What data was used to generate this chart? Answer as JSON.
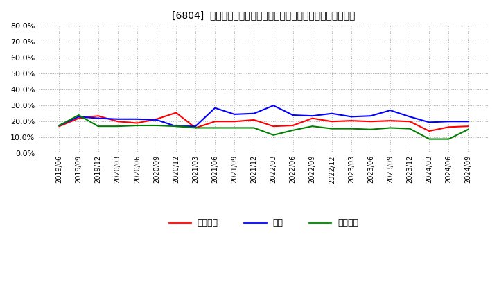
{
  "title": "[6804]  売上債権、在庫、買入債務の総資産に対する比率の推移",
  "x_labels": [
    "2019/06",
    "2019/09",
    "2019/12",
    "2020/03",
    "2020/06",
    "2020/09",
    "2020/12",
    "2021/03",
    "2021/06",
    "2021/09",
    "2021/12",
    "2022/03",
    "2022/06",
    "2022/09",
    "2022/12",
    "2023/03",
    "2023/06",
    "2023/09",
    "2023/12",
    "2024/03",
    "2024/06",
    "2024/09"
  ],
  "売上債権": [
    17.0,
    22.0,
    23.5,
    20.0,
    19.0,
    21.5,
    25.5,
    16.0,
    20.0,
    20.0,
    21.0,
    17.0,
    17.5,
    22.0,
    20.0,
    20.5,
    20.0,
    20.5,
    20.0,
    14.0,
    16.5,
    17.0
  ],
  "在庫": [
    17.5,
    23.0,
    22.0,
    21.5,
    21.5,
    21.0,
    17.0,
    17.0,
    28.5,
    24.5,
    25.0,
    30.0,
    24.0,
    23.5,
    25.0,
    23.0,
    23.5,
    27.0,
    23.0,
    19.5,
    20.0,
    20.0
  ],
  "買入債務": [
    17.5,
    24.0,
    17.0,
    17.0,
    17.5,
    17.5,
    17.0,
    16.0,
    16.0,
    16.0,
    16.0,
    11.5,
    14.5,
    17.0,
    15.5,
    15.5,
    15.0,
    16.0,
    15.5,
    9.0,
    9.0,
    15.0
  ],
  "line_colors": {
    "売上債権": "#ff0000",
    "在庫": "#0000ff",
    "買入債務": "#008000"
  },
  "ylim": [
    0.0,
    80.0
  ],
  "yticks": [
    0.0,
    10.0,
    20.0,
    30.0,
    40.0,
    50.0,
    60.0,
    70.0,
    80.0
  ],
  "bg_color": "#ffffff",
  "grid_color": "#aaaaaa",
  "legend_labels": [
    "売上債権",
    "在庫",
    "買入債務"
  ]
}
